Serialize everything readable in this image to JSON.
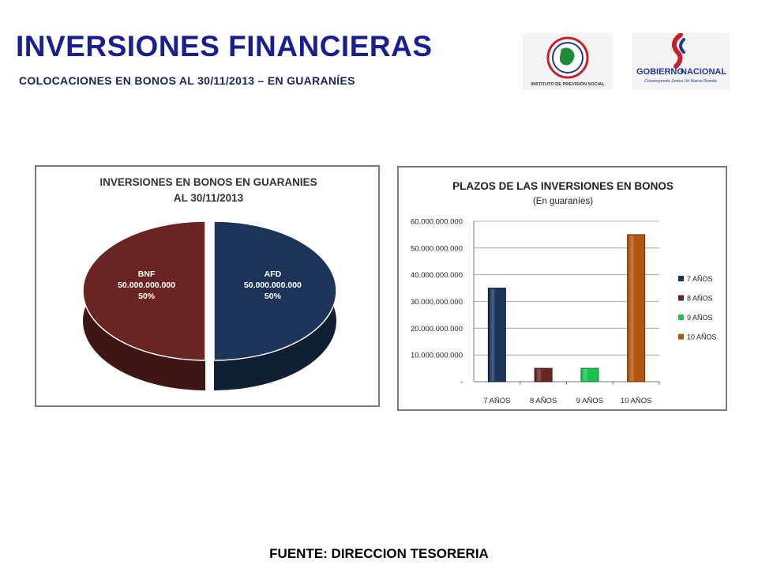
{
  "header": {
    "title": "INVERSIONES FINANCIERAS",
    "subtitle": "COLOCACIONES EN BONOS AL 30/11/2013 – EN GUARANÍES"
  },
  "logos": {
    "ips_label": "INSTITUTO DE PREVISIÓN SOCIAL",
    "gob_word1": "GOBIERNO",
    "gob_word2": "NACIONAL",
    "gob_tagline": "Construyendo Juntos Un Nuevo Rumbo"
  },
  "footer": {
    "source": "FUENTE: DIRECCION TESORERIA"
  },
  "chart_data": [
    {
      "type": "pie",
      "title": "INVERSIONES EN BONOS EN GUARANIES",
      "subtitle": "AL 30/11/2013",
      "slices": [
        {
          "label": "AFD",
          "value_text": "50.000.000.000",
          "percent_text": "50%",
          "value": 50000000000,
          "color": "#1d3459"
        },
        {
          "label": "BNF",
          "value_text": "50.000.000.000",
          "percent_text": "50%",
          "value": 50000000000,
          "color": "#6a2523"
        }
      ]
    },
    {
      "type": "bar",
      "title": "PLAZOS DE LAS INVERSIONES EN BONOS",
      "subtitle": "(En guaraníes)",
      "categories": [
        "7 AÑOS",
        "8 AÑOS",
        "9 AÑOS",
        "10 AÑOS"
      ],
      "values": [
        35000000000,
        5000000000,
        5000000000,
        55000000000
      ],
      "colors": [
        "#1d3459",
        "#6a2523",
        "#1cc24f",
        "#b0550f"
      ],
      "legend": [
        "7 AÑOS",
        "8 AÑOS",
        "9 AÑOS",
        "10 AÑOS"
      ],
      "legend_position": "right",
      "ylim": [
        0,
        60000000000
      ],
      "yticks": [
        0,
        10000000000,
        20000000000,
        30000000000,
        40000000000,
        50000000000,
        60000000000
      ],
      "ytick_labels": [
        "-",
        "10.000.000.000",
        "20.000.000.000",
        "30.000.000.000",
        "40.000.000.000",
        "50.000.000.000",
        "60.000.000.000"
      ],
      "grid": true
    }
  ]
}
